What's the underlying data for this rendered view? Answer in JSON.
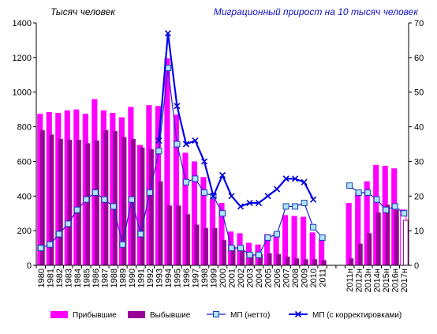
{
  "chart_data": {
    "type": "bar",
    "title_left": "Тысяч человек",
    "title_right": "Миграционный прирост на 10 тысяч человек",
    "categories": [
      "1980",
      "1981",
      "1982",
      "1983",
      "1984",
      "1985",
      "1986",
      "1987",
      "1988",
      "1989",
      "1990",
      "1991",
      "1992",
      "1993",
      "1994",
      "1995",
      "1996",
      "1997",
      "1998",
      "1999",
      "2000",
      "2001",
      "2002",
      "2003",
      "2004",
      "2005",
      "2006",
      "2007",
      "2008",
      "2009",
      "2010",
      "2011",
      "",
      "",
      "2011н",
      "2012н",
      "2013н",
      "2014н",
      "2015н",
      "2016н",
      "2017н"
    ],
    "y_left": {
      "ticks": [
        0,
        200,
        400,
        600,
        800,
        1000,
        1200,
        1400
      ],
      "ylim": [
        0,
        1400
      ]
    },
    "y_right": {
      "ticks": [
        0,
        10,
        20,
        30,
        40,
        50,
        60,
        70
      ],
      "ylim": [
        0,
        70
      ]
    },
    "series": [
      {
        "name": "Прибывшие",
        "axis": "left",
        "kind": "bar",
        "color": "#ff00ff",
        "values": [
          875,
          885,
          880,
          895,
          900,
          875,
          960,
          895,
          880,
          855,
          915,
          695,
          925,
          920,
          1195,
          870,
          650,
          600,
          510,
          385,
          360,
          195,
          185,
          130,
          120,
          180,
          190,
          290,
          285,
          280,
          190,
          155,
          null,
          null,
          360,
          420,
          485,
          580,
          575,
          560,
          320
        ]
      },
      {
        "name": "Выбывшие",
        "axis": "left",
        "kind": "bar",
        "color": "#990099",
        "values": [
          780,
          755,
          730,
          725,
          725,
          705,
          720,
          780,
          775,
          740,
          730,
          680,
          670,
          485,
          345,
          345,
          295,
          235,
          215,
          215,
          145,
          110,
          90,
          65,
          65,
          70,
          65,
          50,
          40,
          35,
          35,
          30,
          null,
          null,
          40,
          125,
          185,
          305,
          350,
          320,
          260
        ]
      },
      {
        "name": "МП  (нетто)",
        "axis": "right",
        "kind": "line",
        "color": "#2222cc",
        "values": [
          5,
          6,
          9,
          12,
          16,
          19,
          21,
          19,
          17,
          6,
          19,
          9,
          21,
          33,
          57,
          35,
          24,
          25,
          21,
          20,
          15,
          5,
          5,
          3,
          3,
          8,
          9,
          17,
          17,
          18,
          11,
          8,
          null,
          null,
          23,
          21,
          21,
          19,
          16,
          17,
          15
        ]
      },
      {
        "name": "МП  (с корректировками)",
        "axis": "right",
        "kind": "line",
        "color": "#0000ee",
        "values": [
          null,
          null,
          null,
          null,
          null,
          null,
          null,
          null,
          null,
          null,
          null,
          null,
          null,
          36,
          67,
          46,
          35,
          36,
          30,
          20,
          26,
          20,
          17,
          18,
          18,
          20,
          22,
          25,
          25,
          24,
          19,
          null,
          null,
          null,
          null,
          null,
          null,
          null,
          null,
          null,
          null
        ]
      }
    ],
    "legend_position": "bottom",
    "grid": false
  }
}
